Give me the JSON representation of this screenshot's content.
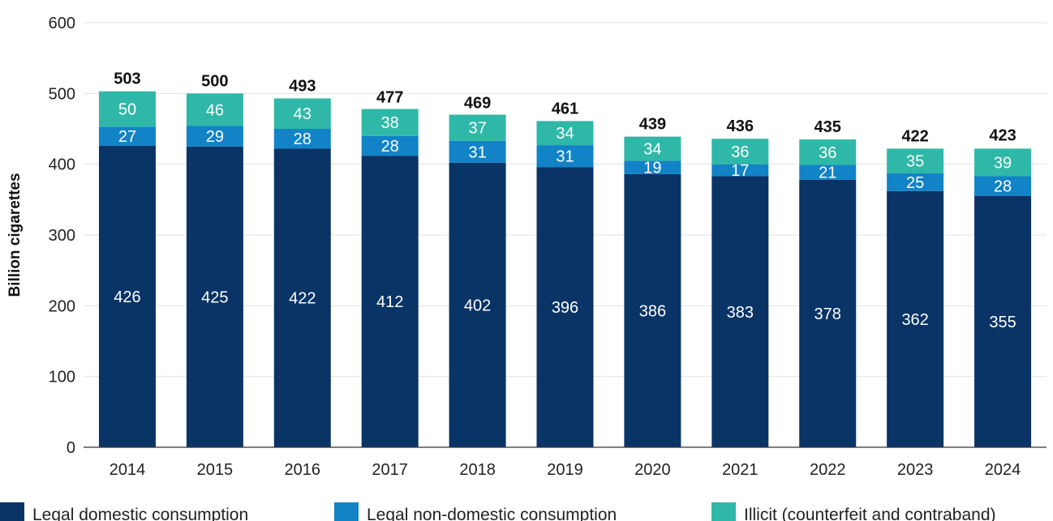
{
  "chart_data": {
    "type": "bar",
    "stacked": true,
    "categories": [
      "2014",
      "2015",
      "2016",
      "2017",
      "2018",
      "2019",
      "2020",
      "2021",
      "2022",
      "2023",
      "2024"
    ],
    "series": [
      {
        "name": "Legal domestic consumption",
        "color": "#0a3466",
        "values": [
          426,
          425,
          422,
          412,
          402,
          396,
          386,
          383,
          378,
          362,
          355
        ]
      },
      {
        "name": "Legal non-domestic consumption",
        "color": "#1183c6",
        "values": [
          27,
          29,
          28,
          28,
          31,
          31,
          19,
          17,
          21,
          25,
          28
        ]
      },
      {
        "name": "Illicit (counterfeit and contraband)",
        "color": "#2fb8a8",
        "values": [
          50,
          46,
          43,
          38,
          37,
          34,
          34,
          36,
          36,
          35,
          39
        ]
      }
    ],
    "totals": [
      503,
      500,
      493,
      477,
      469,
      461,
      439,
      436,
      435,
      422,
      423
    ],
    "ylabel": "Billion cigarettes",
    "ylim": [
      0,
      600
    ],
    "yticks": [
      0,
      100,
      200,
      300,
      400,
      500,
      600
    ],
    "grid": true,
    "legend_position": "bottom"
  }
}
